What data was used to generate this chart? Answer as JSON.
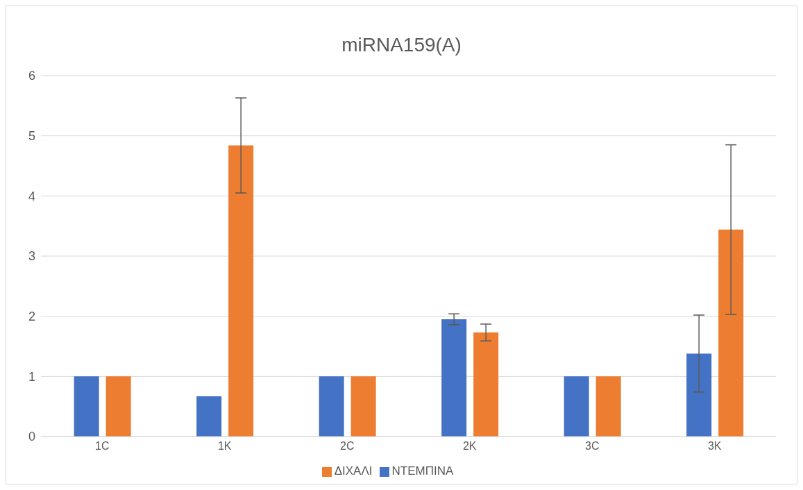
{
  "chart_data": {
    "type": "bar",
    "title": "miRNA159(A)",
    "categories": [
      "1C",
      "1K",
      "2C",
      "2K",
      "3C",
      "3K"
    ],
    "series": [
      {
        "name": "ΝΤΕΜΠΙΝΑ",
        "color": "#4472c4",
        "values": [
          1.0,
          0.67,
          1.0,
          1.95,
          1.0,
          1.38
        ],
        "errors": [
          0,
          0,
          0,
          0.09,
          0,
          0.64
        ]
      },
      {
        "name": "ΔΙΧΑΛΙ",
        "color": "#ed7d31",
        "values": [
          1.0,
          4.84,
          1.0,
          1.73,
          1.0,
          3.44
        ],
        "errors": [
          0,
          0.79,
          0,
          0.14,
          0,
          1.41
        ]
      }
    ],
    "ylim": [
      0,
      6
    ],
    "yticks": [
      0,
      1,
      2,
      3,
      4,
      5,
      6
    ],
    "grid": "y",
    "legend": "bottom"
  }
}
